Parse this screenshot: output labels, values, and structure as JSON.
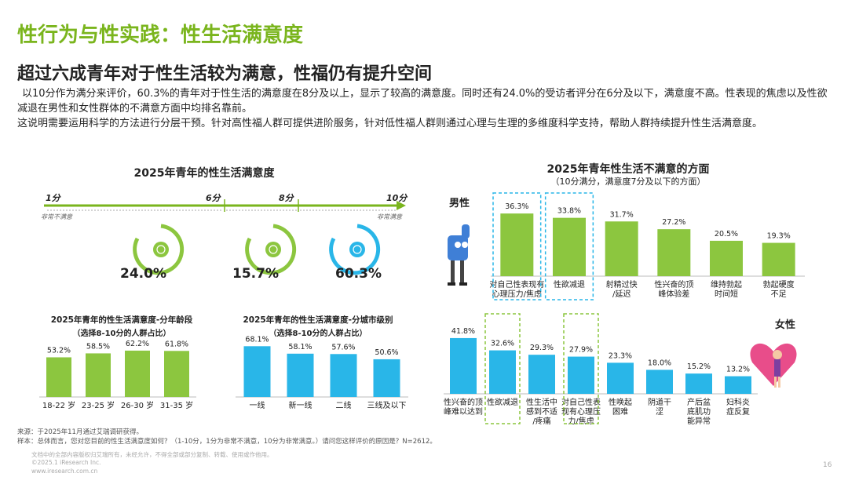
{
  "header": {
    "title": "性行为与性实践：性生活满意度",
    "subtitle": "超过六成青年对于性生活较为满意，性福仍有提升空间",
    "intro_1": "以10分作为满分来评价，60.3%的青年对于性生活的满意度在8分及以上，显示了较高的满意度。同时还有24.0%的受访者评分在6分及以下，满意度不高。性表现的焦虑以及性欲减退在男性和女性群体的不满意方面中均排名靠前。",
    "intro_2": "这说明需要运用科学的方法进行分层干预。针对高性福人群可提供进阶服务，针对低性福人群则通过心理与生理的多维度科学支持，帮助人群持续提升性生活满意度。"
  },
  "scale": {
    "title": "2025年青年的性生活满意度",
    "low_label": "1分",
    "low_desc": "非常不满意",
    "mid1_label": "6分",
    "mid2_label": "8分",
    "high_label": "10分",
    "high_desc": "非常满意",
    "groups": [
      {
        "value": "24.0%",
        "color": "#8cc63f"
      },
      {
        "value": "15.7%",
        "color": "#8cc63f"
      },
      {
        "value": "60.3%",
        "color": "#29b6e8"
      }
    ]
  },
  "chart_data": [
    {
      "type": "bar",
      "title": "2025年青年的性生活满意度-分年龄段",
      "subtitle": "（选择8-10分的人群占比）",
      "categories": [
        "18-22 岁",
        "23-25 岁",
        "26-30 岁",
        "31-35 岁"
      ],
      "values": [
        53.2,
        58.5,
        62.2,
        61.8
      ],
      "value_labels": [
        "53.2%",
        "58.5%",
        "62.2%",
        "61.8%"
      ],
      "color": "#8cc63f"
    },
    {
      "type": "bar",
      "title": "2025年青年的性生活满意度-分城市级别",
      "subtitle": "（选择8-10分的人群占比）",
      "categories": [
        "一线",
        "新一线",
        "二线",
        "三线及以下"
      ],
      "values": [
        68.1,
        58.1,
        57.6,
        50.6
      ],
      "value_labels": [
        "68.1%",
        "58.1%",
        "57.6%",
        "50.6%"
      ],
      "color": "#29b6e8"
    },
    {
      "type": "bar",
      "title": "2025年青年性生活不满意的方面",
      "subtitle": "（10分满分，满意度7分及以下的方面）",
      "series": [
        {
          "name": "男性",
          "color": "#8cc63f",
          "categories": [
            "对自己性表现有心理压力/焦虑",
            "性欲减退",
            "射精过快/延迟",
            "性兴奋的顶峰体验差",
            "维持勃起时间短",
            "勃起硬度不足"
          ],
          "label_lines": [
            [
              "对自己性表现有",
              "心理压力/焦虑"
            ],
            [
              "性欲减退"
            ],
            [
              "射精过快",
              "/延迟"
            ],
            [
              "性兴奋的顶",
              "峰体验差"
            ],
            [
              "维持勃起",
              "时间短"
            ],
            [
              "勃起硬度",
              "不足"
            ]
          ],
          "values": [
            36.3,
            33.8,
            31.7,
            27.2,
            20.5,
            19.3
          ],
          "value_labels": [
            "36.3%",
            "33.8%",
            "31.7%",
            "27.2%",
            "20.5%",
            "19.3%"
          ],
          "highlighted": [
            0,
            1
          ]
        },
        {
          "name": "女性",
          "color": "#29b6e8",
          "categories": [
            "性兴奋的顶峰难以达到",
            "性欲减退",
            "性生活中感到不适/疼痛",
            "对自己性表现有心理压力/焦虑",
            "性唤起困难",
            "阴道干涩",
            "产后盆底肌功能异常",
            "妇科炎症反复"
          ],
          "label_lines": [
            [
              "性兴奋的顶",
              "峰难以达到"
            ],
            [
              "性欲减退"
            ],
            [
              "性生活中",
              "感到不适",
              "/疼痛"
            ],
            [
              "对自己性表",
              "现有心理压",
              "力/焦虑"
            ],
            [
              "性唤起",
              "困难"
            ],
            [
              "阴道干",
              "涩"
            ],
            [
              "产后盆",
              "底肌功",
              "能异常"
            ],
            [
              "妇科炎",
              "症反复"
            ]
          ],
          "values": [
            41.8,
            32.6,
            29.3,
            27.9,
            23.3,
            18.0,
            15.2,
            13.2
          ],
          "value_labels": [
            "41.8%",
            "32.6%",
            "29.3%",
            "27.9%",
            "23.3%",
            "18.0%",
            "15.2%",
            "13.2%"
          ],
          "highlighted": [
            1,
            3
          ]
        }
      ]
    }
  ],
  "footer": {
    "source": "来源：于2025年11月通过艾瑞调研获得。",
    "sample": "样本：总体而言，您对您目前的性生活满意度如何？（1-10分，1分为非常不满意，10分为非常满意。）请问您这样评价的原因是？N=2612。",
    "disclaimer": "文档中的全部内容版权归艾瑞所有，未经允许，不得全部或部分复制、转载、使用或作他用。",
    "copyright": "©2025.1 iResearch Inc.",
    "site": "www.iresearch.com.cn",
    "page_number": "16"
  }
}
